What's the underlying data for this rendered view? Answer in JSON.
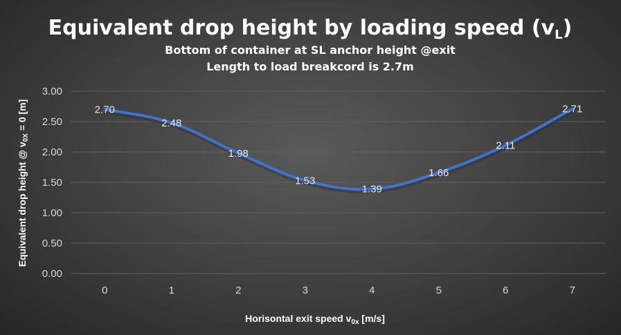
{
  "chart_data": {
    "type": "line",
    "title": {
      "main": "Equivalent drop height by loading speed (v",
      "sub": "L",
      "close": ")"
    },
    "subtitle_lines": [
      "Bottom of container at SL anchor height @exit",
      "Length to load breakcord is 2.7m"
    ],
    "xlabel": {
      "main": "Horisontal exit speed v",
      "sub": "0x",
      "rest": " [m/s]"
    },
    "ylabel": {
      "main": "Equivalent drop height @ v",
      "sub": "0X",
      "rest": " = 0 [m]"
    },
    "categories": [
      "0",
      "1",
      "2",
      "3",
      "4",
      "5",
      "6",
      "7"
    ],
    "series": [
      {
        "values": [
          2.7,
          2.48,
          1.98,
          1.53,
          1.39,
          1.66,
          2.11,
          2.71
        ],
        "labels": [
          "2.70",
          "2.48",
          "1.98",
          "1.53",
          "1.39",
          "1.66",
          "2.11",
          "2.71"
        ],
        "color": "#4472c4"
      }
    ],
    "yticks": [
      "0.00",
      "0.50",
      "1.00",
      "1.50",
      "2.00",
      "2.50",
      "3.00"
    ],
    "ylim": [
      0,
      3
    ],
    "grid": true,
    "gridColor": "#5f5f5f",
    "legend": "none"
  }
}
